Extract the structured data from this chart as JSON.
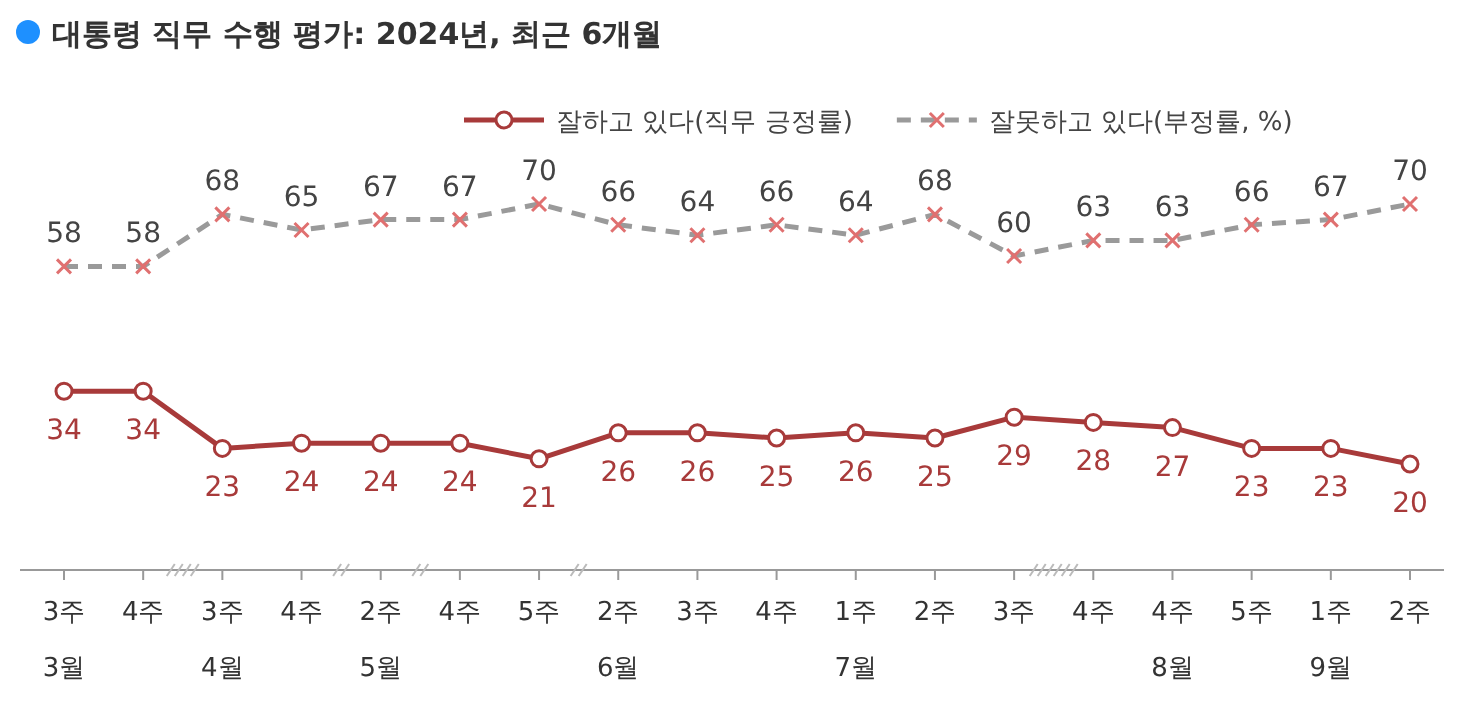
{
  "chart_data": {
    "type": "line",
    "title": "대통령 직무 수행 평가: 2024년, 최근 6개월",
    "categories": [
      "3주\n3월",
      "4주",
      "3주\n4월",
      "4주",
      "2주\n5월",
      "4주",
      "5주",
      "2주\n6월",
      "3주",
      "4주",
      "1주\n7월",
      "2주",
      "3주",
      "4주",
      "4주\n8월",
      "5주",
      "1주\n9월",
      "2주"
    ],
    "series": [
      {
        "name": "잘하고 있다(직무 긍정률)",
        "color": "#a83a3a",
        "marker": "circle",
        "line_style": "solid",
        "values": [
          34,
          34,
          23,
          24,
          24,
          24,
          21,
          26,
          26,
          25,
          26,
          25,
          29,
          28,
          27,
          23,
          23,
          20
        ]
      },
      {
        "name": "잘못하고 있다(부정률, %)",
        "color": "#9a9a9a",
        "marker": "cross",
        "line_style": "dashed",
        "values": [
          58,
          58,
          68,
          65,
          67,
          67,
          70,
          66,
          64,
          66,
          64,
          68,
          60,
          63,
          63,
          66,
          67,
          70
        ]
      }
    ],
    "data_labels": true,
    "legend": "top right"
  }
}
